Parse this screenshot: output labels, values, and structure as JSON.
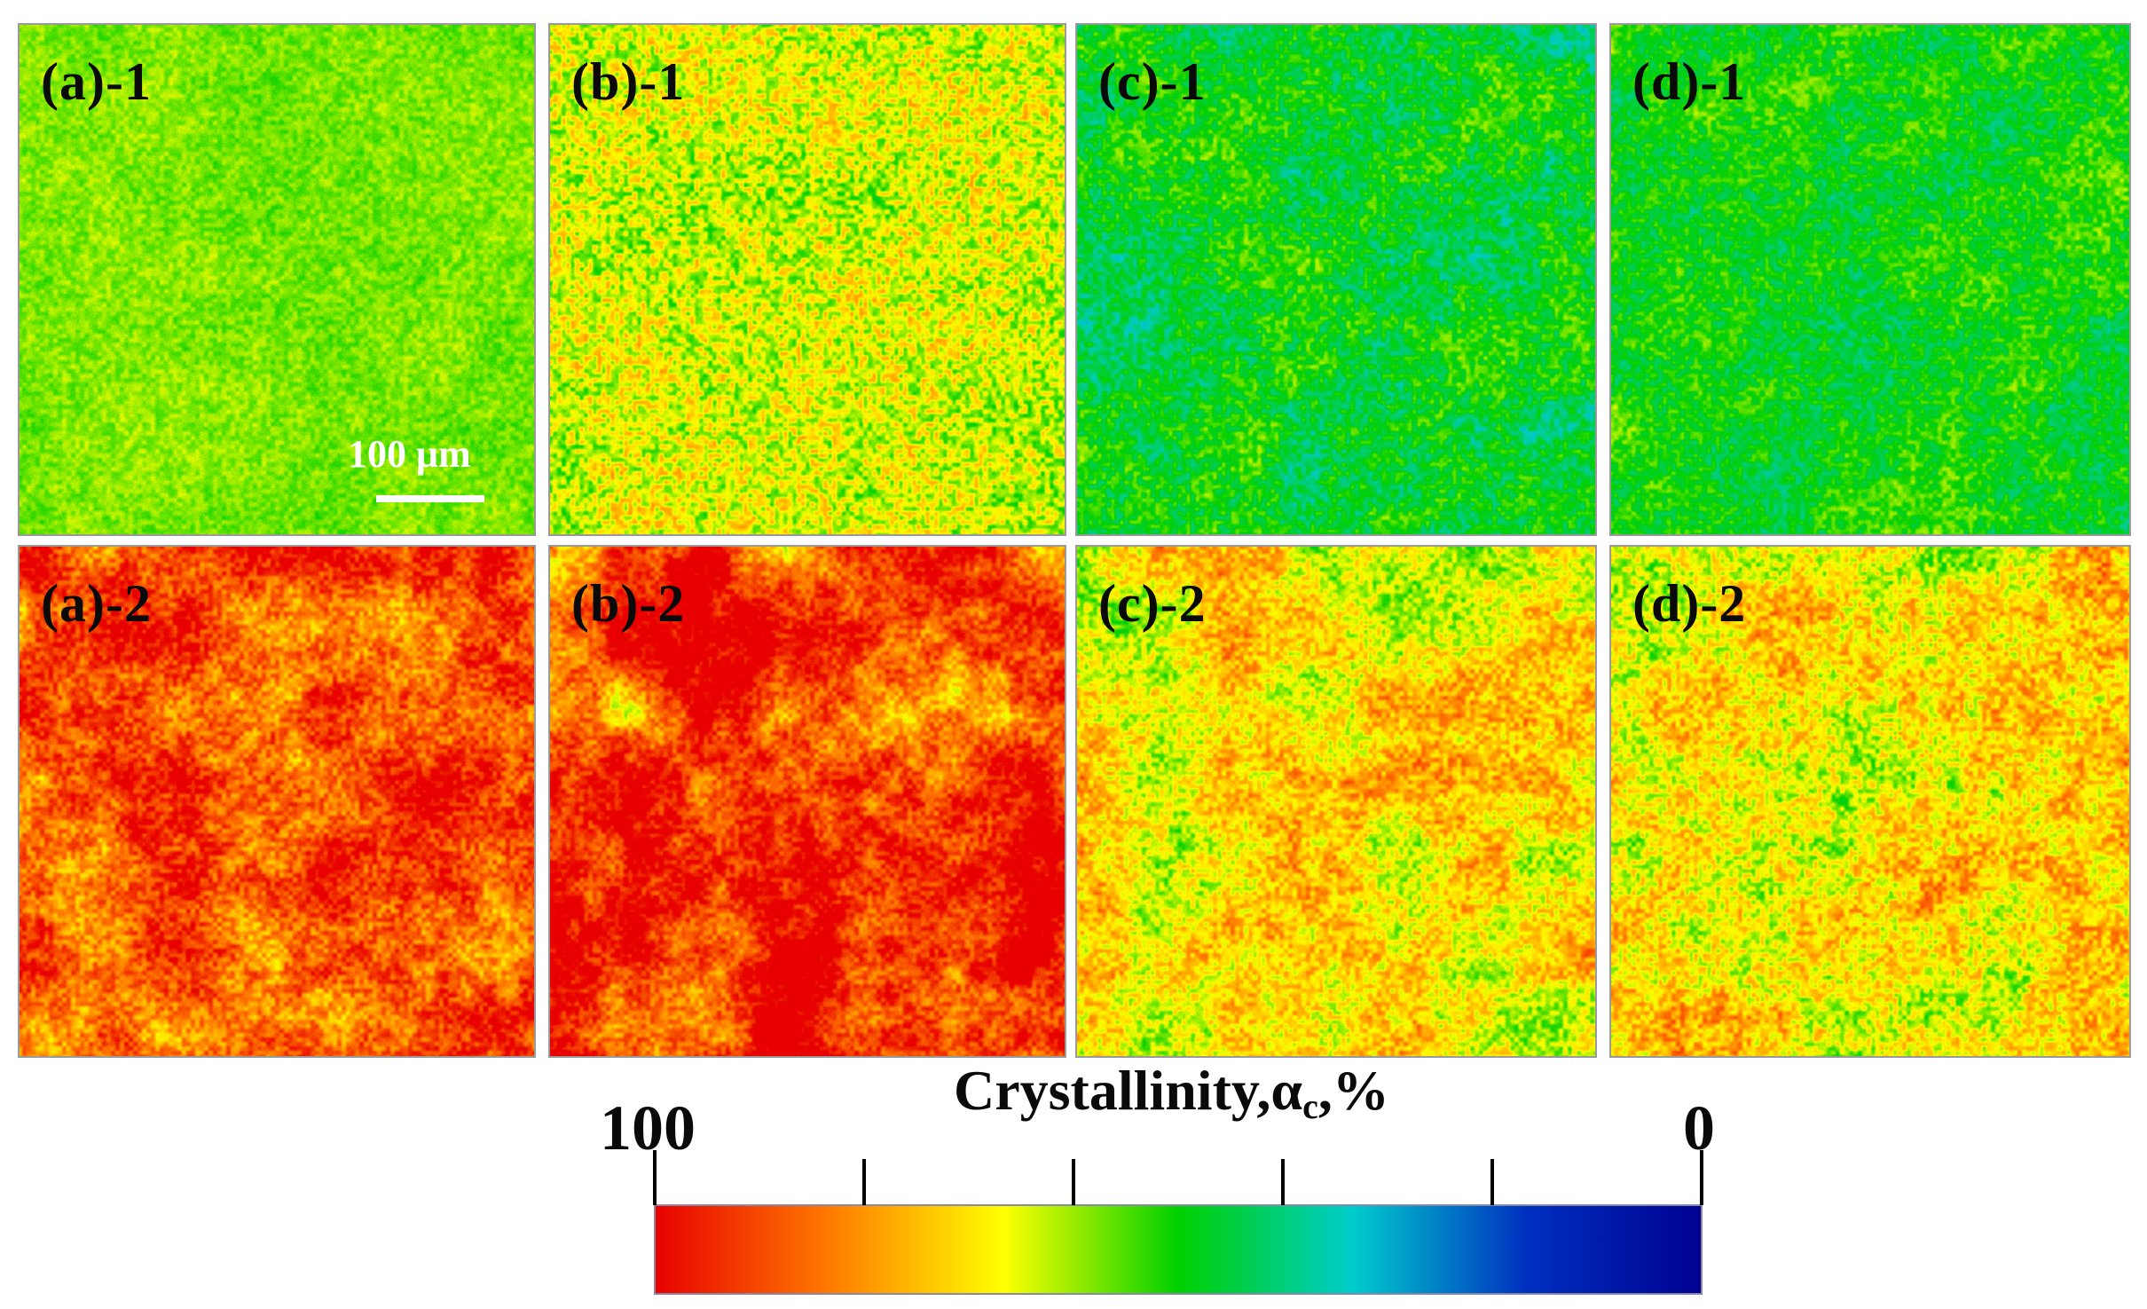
{
  "figure": {
    "panels": [
      {
        "id": "a1",
        "label": "(a)-1",
        "mean_crystallinity": 58
      },
      {
        "id": "b1",
        "label": "(b)-1",
        "mean_crystallinity": 64
      },
      {
        "id": "c1",
        "label": "(c)-1",
        "mean_crystallinity": 47
      },
      {
        "id": "d1",
        "label": "(d)-1",
        "mean_crystallinity": 50
      },
      {
        "id": "a2",
        "label": "(a)-2",
        "mean_crystallinity": 88
      },
      {
        "id": "b2",
        "label": "(b)-2",
        "mean_crystallinity": 90
      },
      {
        "id": "c2",
        "label": "(c)-2",
        "mean_crystallinity": 68
      },
      {
        "id": "d2",
        "label": "(d)-2",
        "mean_crystallinity": 70
      }
    ],
    "scale_bar": {
      "label": "100 μm"
    },
    "colorbar": {
      "title_prefix": "Crystallinity,",
      "symbol": "α",
      "subscript": "c",
      "title_suffix": ",%",
      "max_label": "100",
      "min_label": "0",
      "ticks": 6,
      "colors": [
        "#e80000",
        "#ff7a00",
        "#ffff00",
        "#00d000",
        "#00cccc",
        "#0030c0",
        "#000090"
      ]
    }
  }
}
